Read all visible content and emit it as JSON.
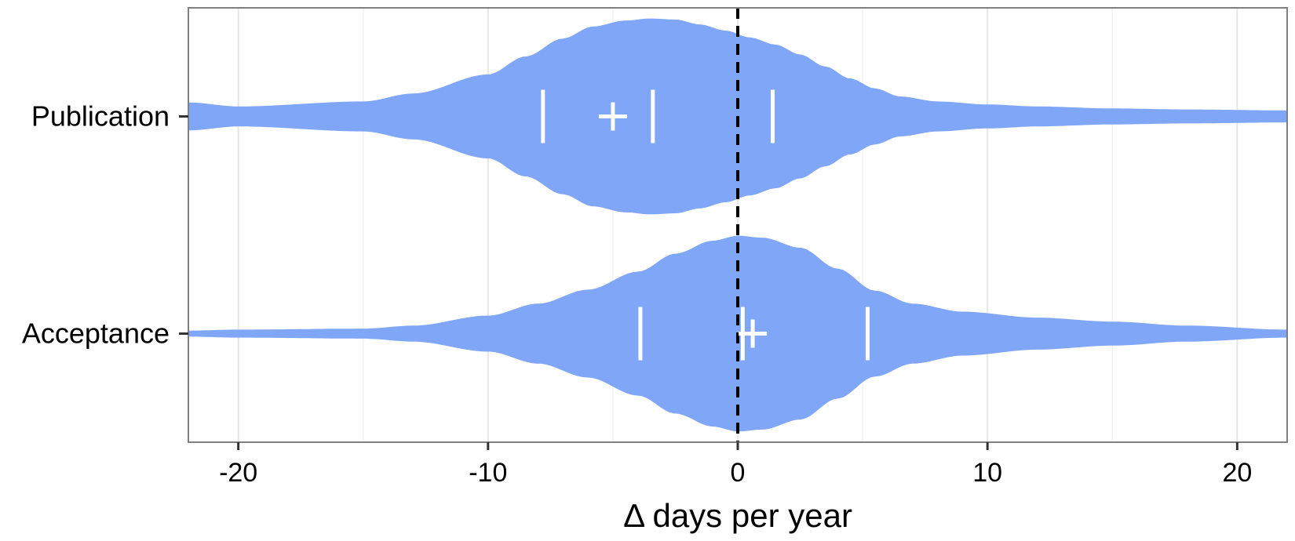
{
  "chart_data": {
    "type": "violin",
    "orientation": "horizontal",
    "xlabel": "Δ days per year",
    "xlim": [
      -22,
      22
    ],
    "x_ticks": [
      -20,
      -10,
      0,
      10,
      20
    ],
    "x_tick_labels": [
      "-20",
      "-10",
      "0",
      "10",
      "20"
    ],
    "x_minor_ticks": [
      -15,
      -5,
      5,
      15
    ],
    "grid": true,
    "legend": "none",
    "reference_line": {
      "x": 0,
      "style": "dashed",
      "color": "#000000"
    },
    "fill_color": "#80A6F7",
    "marker_color": "#FFFFFF",
    "categories": [
      "Publication",
      "Acceptance"
    ],
    "series": [
      {
        "category": "Publication",
        "quantiles": {
          "q1": -7.8,
          "median": -3.4,
          "q3": 1.4
        },
        "mean": -5.0,
        "density_profile": {
          "x": [
            -22,
            -20,
            -15,
            -13,
            -10,
            -8.5,
            -7,
            -5.8,
            -4.5,
            -3.5,
            -2.5,
            -1.5,
            -0.5,
            0.5,
            1.5,
            2.5,
            3.5,
            4.5,
            5.5,
            6.5,
            8,
            10,
            12,
            15,
            18,
            22
          ],
          "relative_width": [
            0.14,
            0.1,
            0.15,
            0.23,
            0.42,
            0.6,
            0.78,
            0.9,
            0.96,
            0.98,
            0.97,
            0.92,
            0.86,
            0.79,
            0.72,
            0.62,
            0.5,
            0.38,
            0.28,
            0.2,
            0.15,
            0.12,
            0.1,
            0.08,
            0.07,
            0.06
          ]
        }
      },
      {
        "category": "Acceptance",
        "quantiles": {
          "q1": -3.9,
          "median": 0.2,
          "q3": 5.2
        },
        "mean": 0.6,
        "density_profile": {
          "x": [
            -22,
            -20,
            -15,
            -13,
            -10,
            -8,
            -6,
            -4,
            -2.5,
            -1,
            0,
            1,
            2.5,
            4,
            5.5,
            7,
            9,
            12,
            15,
            18,
            22
          ],
          "relative_width": [
            0.03,
            0.04,
            0.05,
            0.08,
            0.18,
            0.3,
            0.44,
            0.62,
            0.8,
            0.93,
            0.98,
            0.96,
            0.86,
            0.65,
            0.43,
            0.3,
            0.22,
            0.16,
            0.12,
            0.08,
            0.04
          ]
        }
      }
    ]
  }
}
